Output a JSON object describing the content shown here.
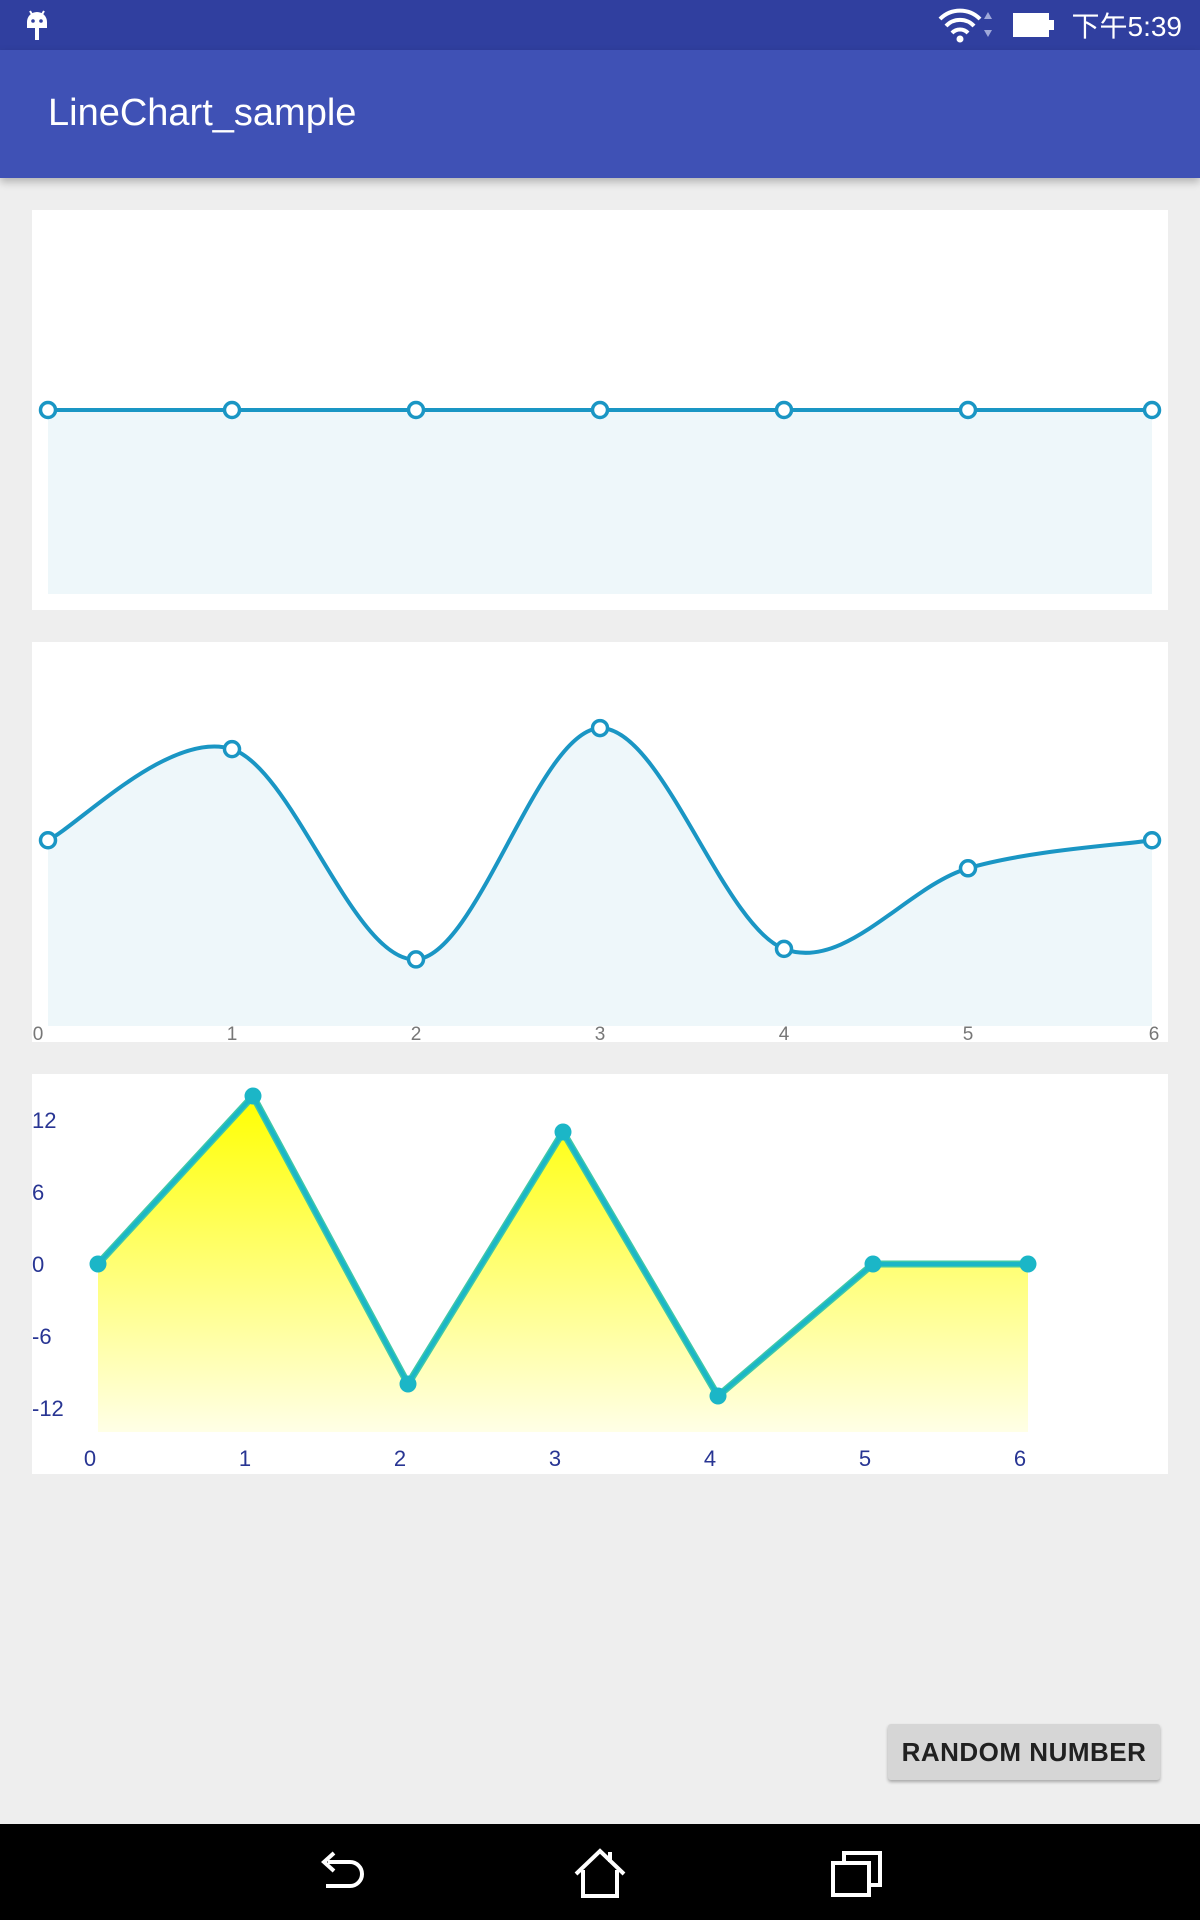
{
  "status_bar": {
    "time": "下午5:39",
    "icons": [
      "android-notification-icon",
      "wifi-icon",
      "battery-icon"
    ]
  },
  "app_bar": {
    "title": "LineChart_sample",
    "color": "#3f51b5"
  },
  "colors": {
    "status_bar": "#303f9f",
    "line": "#1a96c4",
    "line_fill": "#eef7fa",
    "line3": "#1bb6c7",
    "area3_top": "#ffff00",
    "area3_bottom": "#ffffe6",
    "axis_text": "#283593"
  },
  "chart_data": [
    {
      "type": "line",
      "x": [
        0,
        1,
        2,
        3,
        4,
        5,
        6
      ],
      "values": [
        0,
        0,
        0,
        0,
        0,
        0,
        0
      ],
      "ylim": [
        -1,
        1
      ],
      "style": "straight line, hollow circle markers, light area fill",
      "show_axes": false,
      "grid": false
    },
    {
      "type": "line",
      "x": [
        0,
        1,
        2,
        3,
        4,
        5,
        6
      ],
      "x_tick_labels": [
        "0",
        "1",
        "2",
        "3",
        "4",
        "5",
        "6"
      ],
      "values": [
        0.3,
        2.9,
        -3.1,
        3.5,
        -2.8,
        -0.5,
        0.3
      ],
      "ylim": [
        -5,
        5.5
      ],
      "style": "smooth cubic line, hollow circle markers, light area fill",
      "show_y_axis": false,
      "grid": false
    },
    {
      "type": "area",
      "x": [
        0,
        1,
        2,
        3,
        4,
        5,
        6
      ],
      "x_tick_labels": [
        "0",
        "1",
        "2",
        "3",
        "4",
        "5",
        "6"
      ],
      "values": [
        0,
        14,
        -10,
        11,
        -11,
        0,
        0
      ],
      "ylim": [
        -14,
        14
      ],
      "y_ticks": [
        12,
        6,
        0,
        -6,
        -12
      ],
      "style": "straight line, filled circle markers, yellow gradient area fill",
      "grid": false
    }
  ],
  "button": {
    "label": "RANDOM NUMBER"
  },
  "nav_bar": {
    "back": "back-icon",
    "home": "home-icon",
    "recents": "recents-icon"
  }
}
